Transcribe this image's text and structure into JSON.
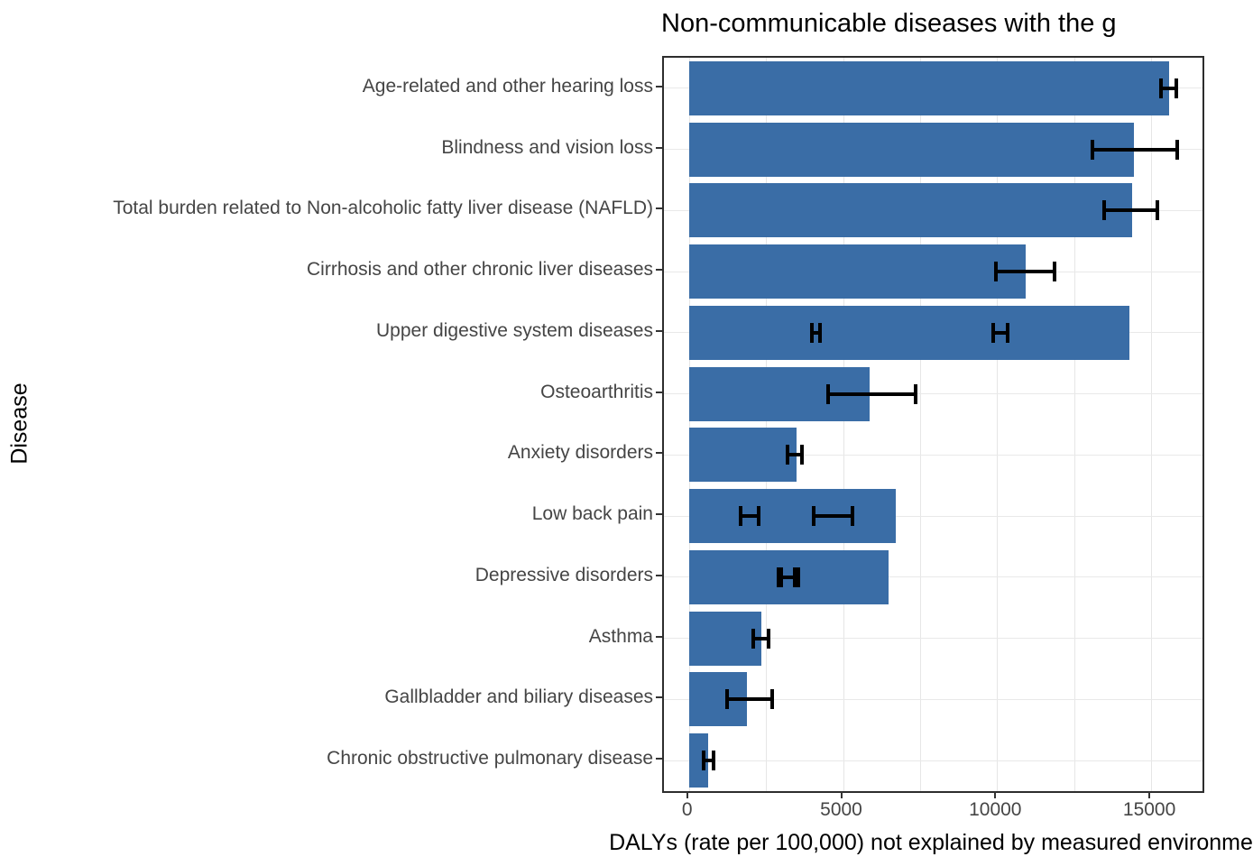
{
  "chart_data": {
    "type": "bar",
    "orientation": "horizontal",
    "title": "Non-communicable diseases with the g",
    "xlabel": "DALYs (rate per 100,000) not explained by measured environme",
    "ylabel": "Disease",
    "x_ticks": [
      0,
      5000,
      10000,
      15000
    ],
    "x_tick_labels": [
      "0",
      "5000",
      "10000",
      "15000"
    ],
    "xlim": [
      -810,
      16670
    ],
    "grid_interval": 2500,
    "legend": "none",
    "bar_color": "#3a6da6",
    "errorbar_color": "#000000",
    "gridline_color": "#e6e6e6",
    "categories": [
      "Age-related and other hearing loss",
      "Blindness and vision loss",
      "Total burden related to Non-alcoholic fatty liver disease (NAFLD)",
      "Cirrhosis and other chronic liver diseases",
      "Upper digestive system diseases",
      "Osteoarthritis",
      "Anxiety disorders",
      "Low back pain",
      "Depressive disorders",
      "Asthma",
      "Gallbladder and biliary diseases",
      "Chronic obstructive pulmonary disease"
    ],
    "values": [
      15580,
      14450,
      14390,
      10940,
      14290,
      5860,
      3490,
      6720,
      6480,
      2340,
      1880,
      630
    ],
    "error_bars": [
      [
        [
          15310,
          15820
        ]
      ],
      [
        [
          13090,
          15850
        ]
      ],
      [
        [
          13480,
          15190
        ]
      ],
      [
        [
          9960,
          11870
        ]
      ],
      [
        [
          4000,
          4250
        ],
        [
          9860,
          10350
        ]
      ],
      [
        [
          4520,
          7370
        ]
      ],
      [
        [
          3190,
          3660
        ]
      ],
      [
        [
          1680,
          2270
        ],
        [
          4050,
          5320
        ]
      ],
      [
        [
          2900,
          3430
        ],
        [
          2990,
          3550
        ]
      ],
      [
        [
          2100,
          2590
        ]
      ],
      [
        [
          1250,
          2700
        ]
      ],
      [
        [
          470,
          810
        ]
      ]
    ]
  }
}
